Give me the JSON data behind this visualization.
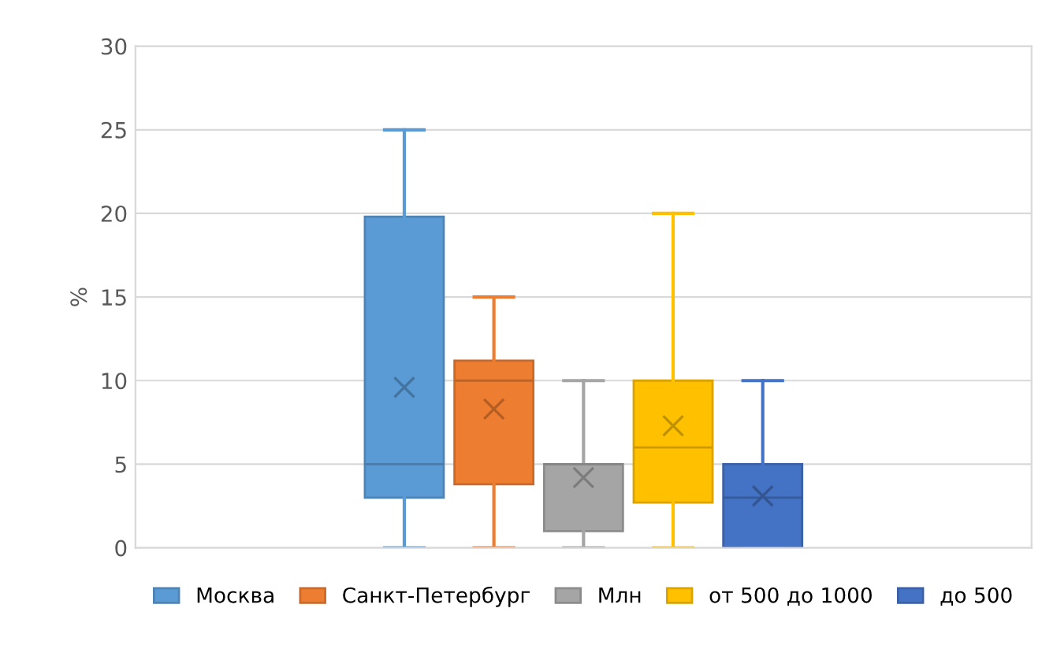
{
  "chart_data": {
    "type": "box",
    "ylabel": "%",
    "categories": [
      null
    ],
    "series": [
      {
        "name": "Москва",
        "color": "#5b9bd5",
        "boxes": [
          {
            "low": 0,
            "q1": 3,
            "median": 5,
            "q3": 19.8,
            "high": 25,
            "mean": 9.6
          }
        ]
      },
      {
        "name": "Санкт-Петербург",
        "color": "#ed7d31",
        "boxes": [
          {
            "low": 0,
            "q1": 3.8,
            "median": 10,
            "q3": 11.2,
            "high": 15,
            "mean": 8.3
          }
        ]
      },
      {
        "name": "Млн",
        "color": "#a5a5a5",
        "boxes": [
          {
            "low": 0,
            "q1": 1,
            "median": 5,
            "q3": 5,
            "high": 10,
            "mean": 4.2
          }
        ]
      },
      {
        "name": "от 500 до 1000",
        "color": "#ffc000",
        "boxes": [
          {
            "low": 0,
            "q1": 2.7,
            "median": 6,
            "q3": 10,
            "high": 20,
            "mean": 7.3
          }
        ]
      },
      {
        "name": "до 500",
        "color": "#4472c4",
        "boxes": [
          {
            "low": 0,
            "q1": 0,
            "median": 3,
            "q3": 5,
            "high": 10,
            "mean": 3.1
          }
        ]
      }
    ],
    "ylim": [
      0,
      30
    ],
    "yticks": [
      0,
      5,
      10,
      15,
      20,
      25,
      30
    ],
    "grid": "y",
    "legend": "bottom"
  }
}
